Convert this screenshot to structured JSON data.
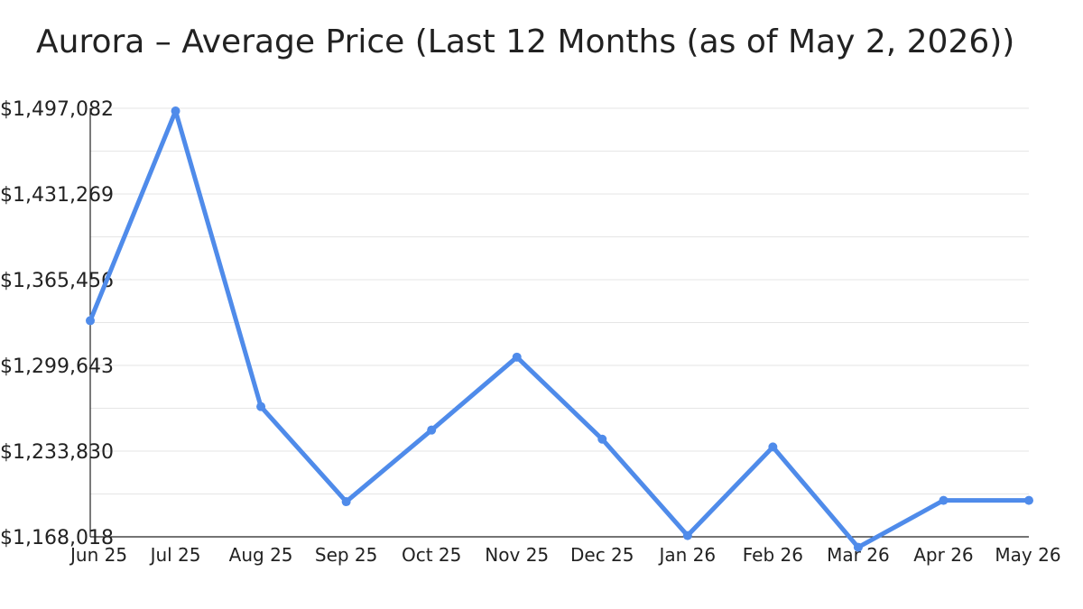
{
  "chart_data": {
    "type": "line",
    "title": "Aurora – Average Price (Last 12 Months (as of May 2, 2026))",
    "xlabel": "",
    "ylabel": "",
    "categories": [
      "Jun 25",
      "Jul 25",
      "Aug 25",
      "Sep 25",
      "Oct 25",
      "Nov 25",
      "Dec 25",
      "Jan 26",
      "Feb 26",
      "Mar 26",
      "Apr 26",
      "May 26"
    ],
    "series": [
      {
        "values": [
          1334000,
          1495000,
          1268000,
          1195000,
          1250000,
          1306000,
          1243000,
          1169000,
          1237000,
          1160000,
          1196000,
          1196000
        ]
      }
    ],
    "ylim": [
      1168018,
      1497082
    ],
    "yticks": [
      1168018,
      1233830,
      1299643,
      1365456,
      1431269,
      1497082
    ],
    "ytick_labels": [
      "$1,168,018",
      "$1,233,830",
      "$1,299,643",
      "$1,365,456",
      "$1,431,269",
      "$1,497,082"
    ],
    "grid": true,
    "legend": "none",
    "colors": {
      "line": "#4F8BEA",
      "grid": "#E6E6E6",
      "axis": "#222222",
      "text": "#222222"
    }
  }
}
